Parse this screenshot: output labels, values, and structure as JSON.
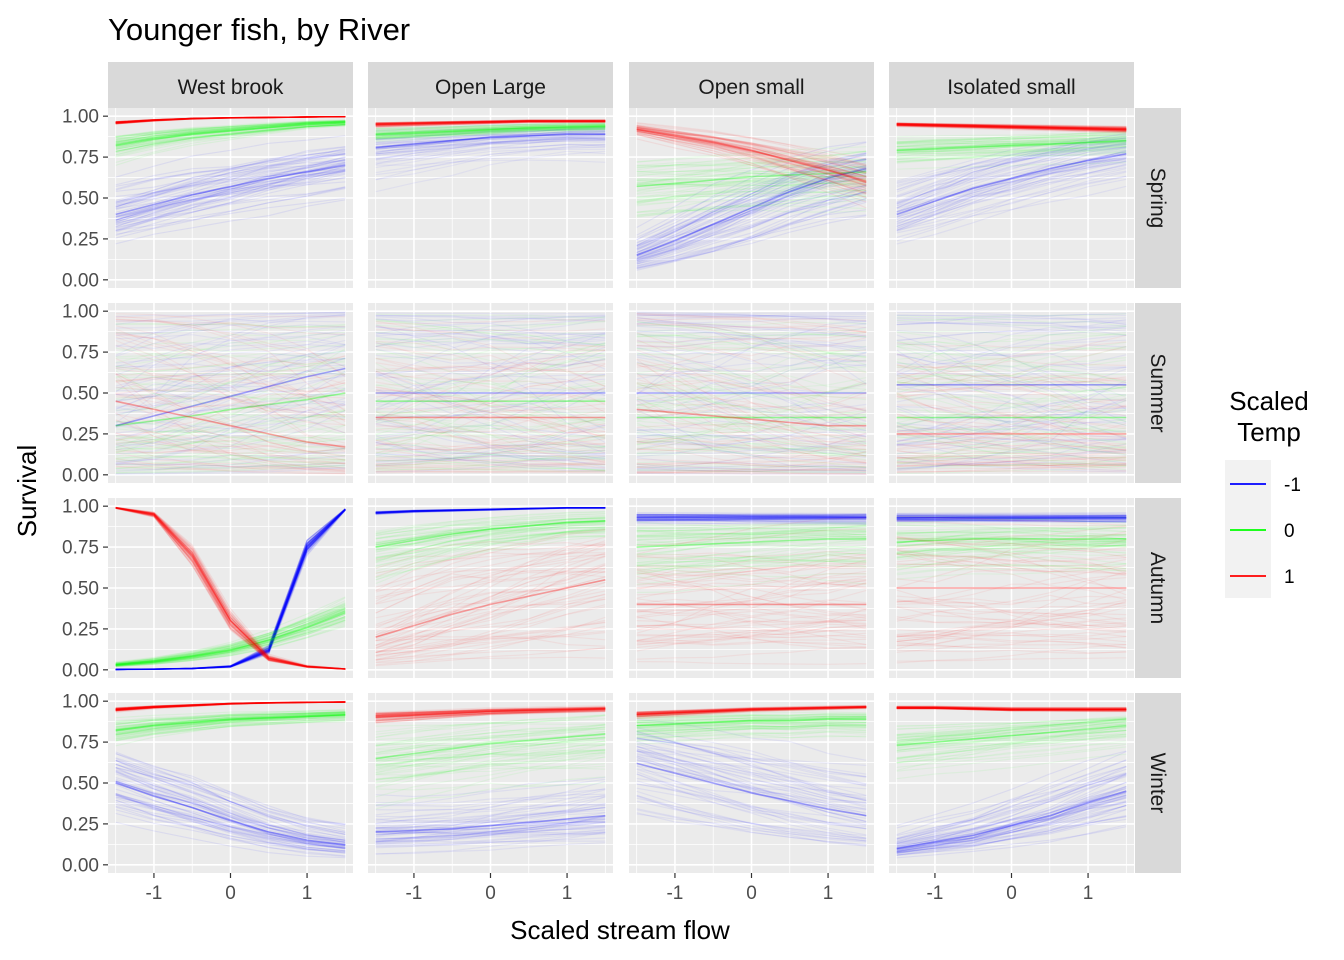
{
  "chart_data": {
    "type": "line",
    "title": "Younger fish, by River",
    "xlabel": "Scaled stream flow",
    "ylabel": "Survival",
    "xlim": [
      -1.6,
      1.6
    ],
    "ylim": [
      -0.05,
      1.05
    ],
    "x_ticks": [
      -1,
      0,
      1
    ],
    "x_tick_labels": [
      "-1",
      "0",
      "1"
    ],
    "y_ticks": [
      0,
      0.25,
      0.5,
      0.75,
      1
    ],
    "y_tick_labels": [
      "0.00",
      "0.25",
      "0.50",
      "0.75",
      "1.00"
    ],
    "grid": true,
    "columns": [
      "West brook",
      "Open Large",
      "Open small",
      "Isolated small"
    ],
    "rows": [
      "Spring",
      "Summer",
      "Autumn",
      "Winter"
    ],
    "x": [
      -1.5,
      -1,
      -0.5,
      0,
      0.5,
      1,
      1.5
    ],
    "legend": {
      "title_line1": "Scaled",
      "title_line2": "Temp",
      "placement": "right",
      "entries": [
        {
          "label": "-1",
          "color": "#0000FF"
        },
        {
          "label": "0",
          "color": "#00FF00"
        },
        {
          "label": "1",
          "color": "#FF0000"
        }
      ]
    },
    "panels": [
      {
        "row": "Spring",
        "col": "West brook",
        "series": [
          {
            "temp": "-1",
            "y": [
              0.4,
              0.46,
              0.52,
              0.57,
              0.62,
              0.66,
              0.7
            ],
            "spread": 0.1,
            "alpha": 0.07
          },
          {
            "temp": "0",
            "y": [
              0.82,
              0.86,
              0.89,
              0.91,
              0.93,
              0.95,
              0.96
            ],
            "spread": 0.06,
            "alpha": 0.07
          },
          {
            "temp": "1",
            "y": [
              0.96,
              0.975,
              0.985,
              0.99,
              0.992,
              0.995,
              0.997
            ],
            "spread": 0.02,
            "alpha": 0.12
          }
        ]
      },
      {
        "row": "Spring",
        "col": "Open Large",
        "series": [
          {
            "temp": "-1",
            "y": [
              0.81,
              0.83,
              0.85,
              0.87,
              0.88,
              0.89,
              0.89
            ],
            "spread": 0.1,
            "alpha": 0.05
          },
          {
            "temp": "0",
            "y": [
              0.89,
              0.9,
              0.91,
              0.92,
              0.93,
              0.935,
              0.94
            ],
            "spread": 0.05,
            "alpha": 0.06
          },
          {
            "temp": "1",
            "y": [
              0.95,
              0.955,
              0.96,
              0.965,
              0.97,
              0.97,
              0.97
            ],
            "spread": 0.03,
            "alpha": 0.08
          }
        ]
      },
      {
        "row": "Spring",
        "col": "Open small",
        "series": [
          {
            "temp": "-1",
            "y": [
              0.15,
              0.24,
              0.34,
              0.44,
              0.54,
              0.62,
              0.68
            ],
            "spread": 0.1,
            "alpha": 0.07
          },
          {
            "temp": "0",
            "y": [
              0.57,
              0.59,
              0.61,
              0.63,
              0.64,
              0.65,
              0.66
            ],
            "spread": 0.1,
            "alpha": 0.06
          },
          {
            "temp": "1",
            "y": [
              0.92,
              0.88,
              0.84,
              0.79,
              0.73,
              0.67,
              0.6
            ],
            "spread": 0.06,
            "alpha": 0.07
          }
        ]
      },
      {
        "row": "Spring",
        "col": "Isolated small",
        "series": [
          {
            "temp": "-1",
            "y": [
              0.4,
              0.48,
              0.56,
              0.62,
              0.68,
              0.73,
              0.77
            ],
            "spread": 0.1,
            "alpha": 0.06
          },
          {
            "temp": "0",
            "y": [
              0.79,
              0.8,
              0.81,
              0.82,
              0.83,
              0.84,
              0.85
            ],
            "spread": 0.06,
            "alpha": 0.06
          },
          {
            "temp": "1",
            "y": [
              0.95,
              0.945,
              0.94,
              0.935,
              0.93,
              0.925,
              0.92
            ],
            "spread": 0.02,
            "alpha": 0.1
          }
        ]
      },
      {
        "row": "Summer",
        "col": "West brook",
        "series": [
          {
            "temp": "-1",
            "y": [
              0.3,
              0.36,
              0.42,
              0.48,
              0.54,
              0.6,
              0.65
            ],
            "spread": 0.4,
            "alpha": 0.05
          },
          {
            "temp": "0",
            "y": [
              0.3,
              0.33,
              0.36,
              0.4,
              0.43,
              0.46,
              0.5
            ],
            "spread": 0.35,
            "alpha": 0.05
          },
          {
            "temp": "1",
            "y": [
              0.45,
              0.4,
              0.35,
              0.3,
              0.25,
              0.2,
              0.17
            ],
            "spread": 0.4,
            "alpha": 0.05
          }
        ]
      },
      {
        "row": "Summer",
        "col": "Open Large",
        "series": [
          {
            "temp": "-1",
            "y": [
              0.5,
              0.5,
              0.5,
              0.5,
              0.5,
              0.5,
              0.5
            ],
            "spread": 0.45,
            "alpha": 0.05
          },
          {
            "temp": "0",
            "y": [
              0.45,
              0.45,
              0.45,
              0.45,
              0.45,
              0.45,
              0.45
            ],
            "spread": 0.4,
            "alpha": 0.05
          },
          {
            "temp": "1",
            "y": [
              0.35,
              0.35,
              0.35,
              0.35,
              0.35,
              0.35,
              0.35
            ],
            "spread": 0.35,
            "alpha": 0.05
          }
        ]
      },
      {
        "row": "Summer",
        "col": "Open small",
        "series": [
          {
            "temp": "-1",
            "y": [
              0.5,
              0.5,
              0.5,
              0.5,
              0.5,
              0.5,
              0.5
            ],
            "spread": 0.45,
            "alpha": 0.05
          },
          {
            "temp": "0",
            "y": [
              0.35,
              0.35,
              0.35,
              0.35,
              0.35,
              0.35,
              0.35
            ],
            "spread": 0.35,
            "alpha": 0.05
          },
          {
            "temp": "1",
            "y": [
              0.4,
              0.38,
              0.36,
              0.34,
              0.32,
              0.3,
              0.3
            ],
            "spread": 0.4,
            "alpha": 0.05
          }
        ]
      },
      {
        "row": "Summer",
        "col": "Isolated small",
        "series": [
          {
            "temp": "-1",
            "y": [
              0.55,
              0.55,
              0.55,
              0.55,
              0.55,
              0.55,
              0.55
            ],
            "spread": 0.4,
            "alpha": 0.05
          },
          {
            "temp": "0",
            "y": [
              0.35,
              0.35,
              0.35,
              0.35,
              0.35,
              0.35,
              0.35
            ],
            "spread": 0.35,
            "alpha": 0.05
          },
          {
            "temp": "1",
            "y": [
              0.25,
              0.25,
              0.25,
              0.25,
              0.25,
              0.25,
              0.25
            ],
            "spread": 0.3,
            "alpha": 0.05
          }
        ]
      },
      {
        "row": "Autumn",
        "col": "West brook",
        "series": [
          {
            "temp": "-1",
            "y": [
              0.002,
              0.004,
              0.008,
              0.02,
              0.12,
              0.75,
              0.98
            ],
            "spread": 0.03,
            "alpha": 0.1
          },
          {
            "temp": "0",
            "y": [
              0.03,
              0.05,
              0.08,
              0.12,
              0.18,
              0.26,
              0.35
            ],
            "spread": 0.05,
            "alpha": 0.07
          },
          {
            "temp": "1",
            "y": [
              0.99,
              0.95,
              0.7,
              0.3,
              0.07,
              0.02,
              0.005
            ],
            "spread": 0.04,
            "alpha": 0.08
          }
        ]
      },
      {
        "row": "Autumn",
        "col": "Open Large",
        "series": [
          {
            "temp": "-1",
            "y": [
              0.96,
              0.97,
              0.975,
              0.98,
              0.985,
              0.99,
              0.99
            ],
            "spread": 0.02,
            "alpha": 0.08
          },
          {
            "temp": "0",
            "y": [
              0.75,
              0.79,
              0.83,
              0.86,
              0.88,
              0.9,
              0.91
            ],
            "spread": 0.1,
            "alpha": 0.06
          },
          {
            "temp": "1",
            "y": [
              0.2,
              0.27,
              0.34,
              0.4,
              0.45,
              0.5,
              0.55
            ],
            "spread": 0.22,
            "alpha": 0.06
          }
        ]
      },
      {
        "row": "Autumn",
        "col": "Open small",
        "series": [
          {
            "temp": "-1",
            "y": [
              0.93,
              0.93,
              0.93,
              0.93,
              0.93,
              0.93,
              0.93
            ],
            "spread": 0.05,
            "alpha": 0.07
          },
          {
            "temp": "0",
            "y": [
              0.75,
              0.76,
              0.77,
              0.78,
              0.79,
              0.8,
              0.8
            ],
            "spread": 0.12,
            "alpha": 0.06
          },
          {
            "temp": "1",
            "y": [
              0.4,
              0.4,
              0.4,
              0.4,
              0.4,
              0.4,
              0.4
            ],
            "spread": 0.25,
            "alpha": 0.06
          }
        ]
      },
      {
        "row": "Autumn",
        "col": "Isolated small",
        "series": [
          {
            "temp": "-1",
            "y": [
              0.93,
              0.93,
              0.93,
              0.93,
              0.93,
              0.93,
              0.93
            ],
            "spread": 0.05,
            "alpha": 0.07
          },
          {
            "temp": "0",
            "y": [
              0.78,
              0.79,
              0.8,
              0.8,
              0.8,
              0.8,
              0.8
            ],
            "spread": 0.12,
            "alpha": 0.06
          },
          {
            "temp": "1",
            "y": [
              0.5,
              0.5,
              0.5,
              0.5,
              0.5,
              0.5,
              0.5
            ],
            "spread": 0.25,
            "alpha": 0.06
          }
        ]
      },
      {
        "row": "Winter",
        "col": "West brook",
        "series": [
          {
            "temp": "-1",
            "y": [
              0.5,
              0.42,
              0.35,
              0.27,
              0.2,
              0.15,
              0.12
            ],
            "spread": 0.1,
            "alpha": 0.07
          },
          {
            "temp": "0",
            "y": [
              0.82,
              0.85,
              0.87,
              0.89,
              0.9,
              0.91,
              0.92
            ],
            "spread": 0.05,
            "alpha": 0.07
          },
          {
            "temp": "1",
            "y": [
              0.95,
              0.965,
              0.975,
              0.985,
              0.99,
              0.993,
              0.995
            ],
            "spread": 0.02,
            "alpha": 0.12
          }
        ]
      },
      {
        "row": "Winter",
        "col": "Open Large",
        "series": [
          {
            "temp": "-1",
            "y": [
              0.2,
              0.21,
              0.22,
              0.24,
              0.26,
              0.28,
              0.3
            ],
            "spread": 0.12,
            "alpha": 0.06
          },
          {
            "temp": "0",
            "y": [
              0.65,
              0.68,
              0.71,
              0.74,
              0.76,
              0.78,
              0.8
            ],
            "spread": 0.12,
            "alpha": 0.06
          },
          {
            "temp": "1",
            "y": [
              0.91,
              0.92,
              0.93,
              0.94,
              0.945,
              0.95,
              0.955
            ],
            "spread": 0.04,
            "alpha": 0.08
          }
        ]
      },
      {
        "row": "Winter",
        "col": "Open small",
        "series": [
          {
            "temp": "-1",
            "y": [
              0.62,
              0.56,
              0.5,
              0.44,
              0.39,
              0.34,
              0.3
            ],
            "spread": 0.13,
            "alpha": 0.06
          },
          {
            "temp": "0",
            "y": [
              0.85,
              0.86,
              0.87,
              0.88,
              0.88,
              0.89,
              0.89
            ],
            "spread": 0.07,
            "alpha": 0.06
          },
          {
            "temp": "1",
            "y": [
              0.92,
              0.93,
              0.94,
              0.95,
              0.955,
              0.96,
              0.965
            ],
            "spread": 0.03,
            "alpha": 0.08
          }
        ]
      },
      {
        "row": "Winter",
        "col": "Isolated small",
        "series": [
          {
            "temp": "-1",
            "y": [
              0.1,
              0.14,
              0.18,
              0.24,
              0.3,
              0.38,
              0.45
            ],
            "spread": 0.1,
            "alpha": 0.07
          },
          {
            "temp": "0",
            "y": [
              0.73,
              0.75,
              0.77,
              0.79,
              0.81,
              0.83,
              0.85
            ],
            "spread": 0.08,
            "alpha": 0.06
          },
          {
            "temp": "1",
            "y": [
              0.96,
              0.96,
              0.955,
              0.95,
              0.95,
              0.95,
              0.95
            ],
            "spread": 0.02,
            "alpha": 0.1
          }
        ]
      }
    ]
  }
}
